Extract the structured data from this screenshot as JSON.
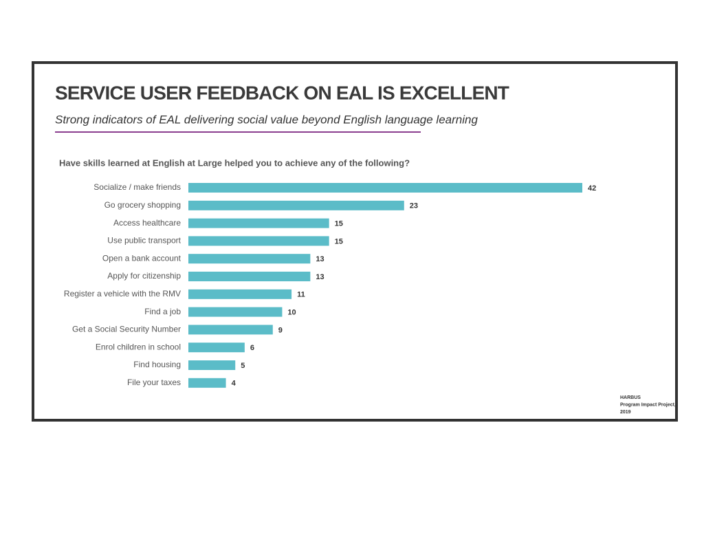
{
  "chart_data": {
    "type": "bar",
    "orientation": "horizontal",
    "title": "SERVICE USER FEEDBACK ON EAL IS EXCELLENT",
    "subtitle": "Strong indicators of EAL delivering social value beyond English language learning",
    "question": "Have skills learned at English at Large helped you to achieve any of the following?",
    "categories": [
      "Socialize / make friends",
      "Go grocery shopping",
      "Access healthcare",
      "Use public transport",
      "Open a bank account",
      "Apply for citizenship",
      "Register a vehicle with the RMV",
      "Find a job",
      "Get a Social Security Number",
      "Enrol children in school",
      "Find housing",
      "File your taxes"
    ],
    "values": [
      42,
      23,
      15,
      15,
      13,
      13,
      11,
      10,
      9,
      6,
      5,
      4
    ],
    "color": "#5bbcc8",
    "source_lines": [
      "HARBUS",
      "Program Impact Project,",
      "2019"
    ]
  }
}
